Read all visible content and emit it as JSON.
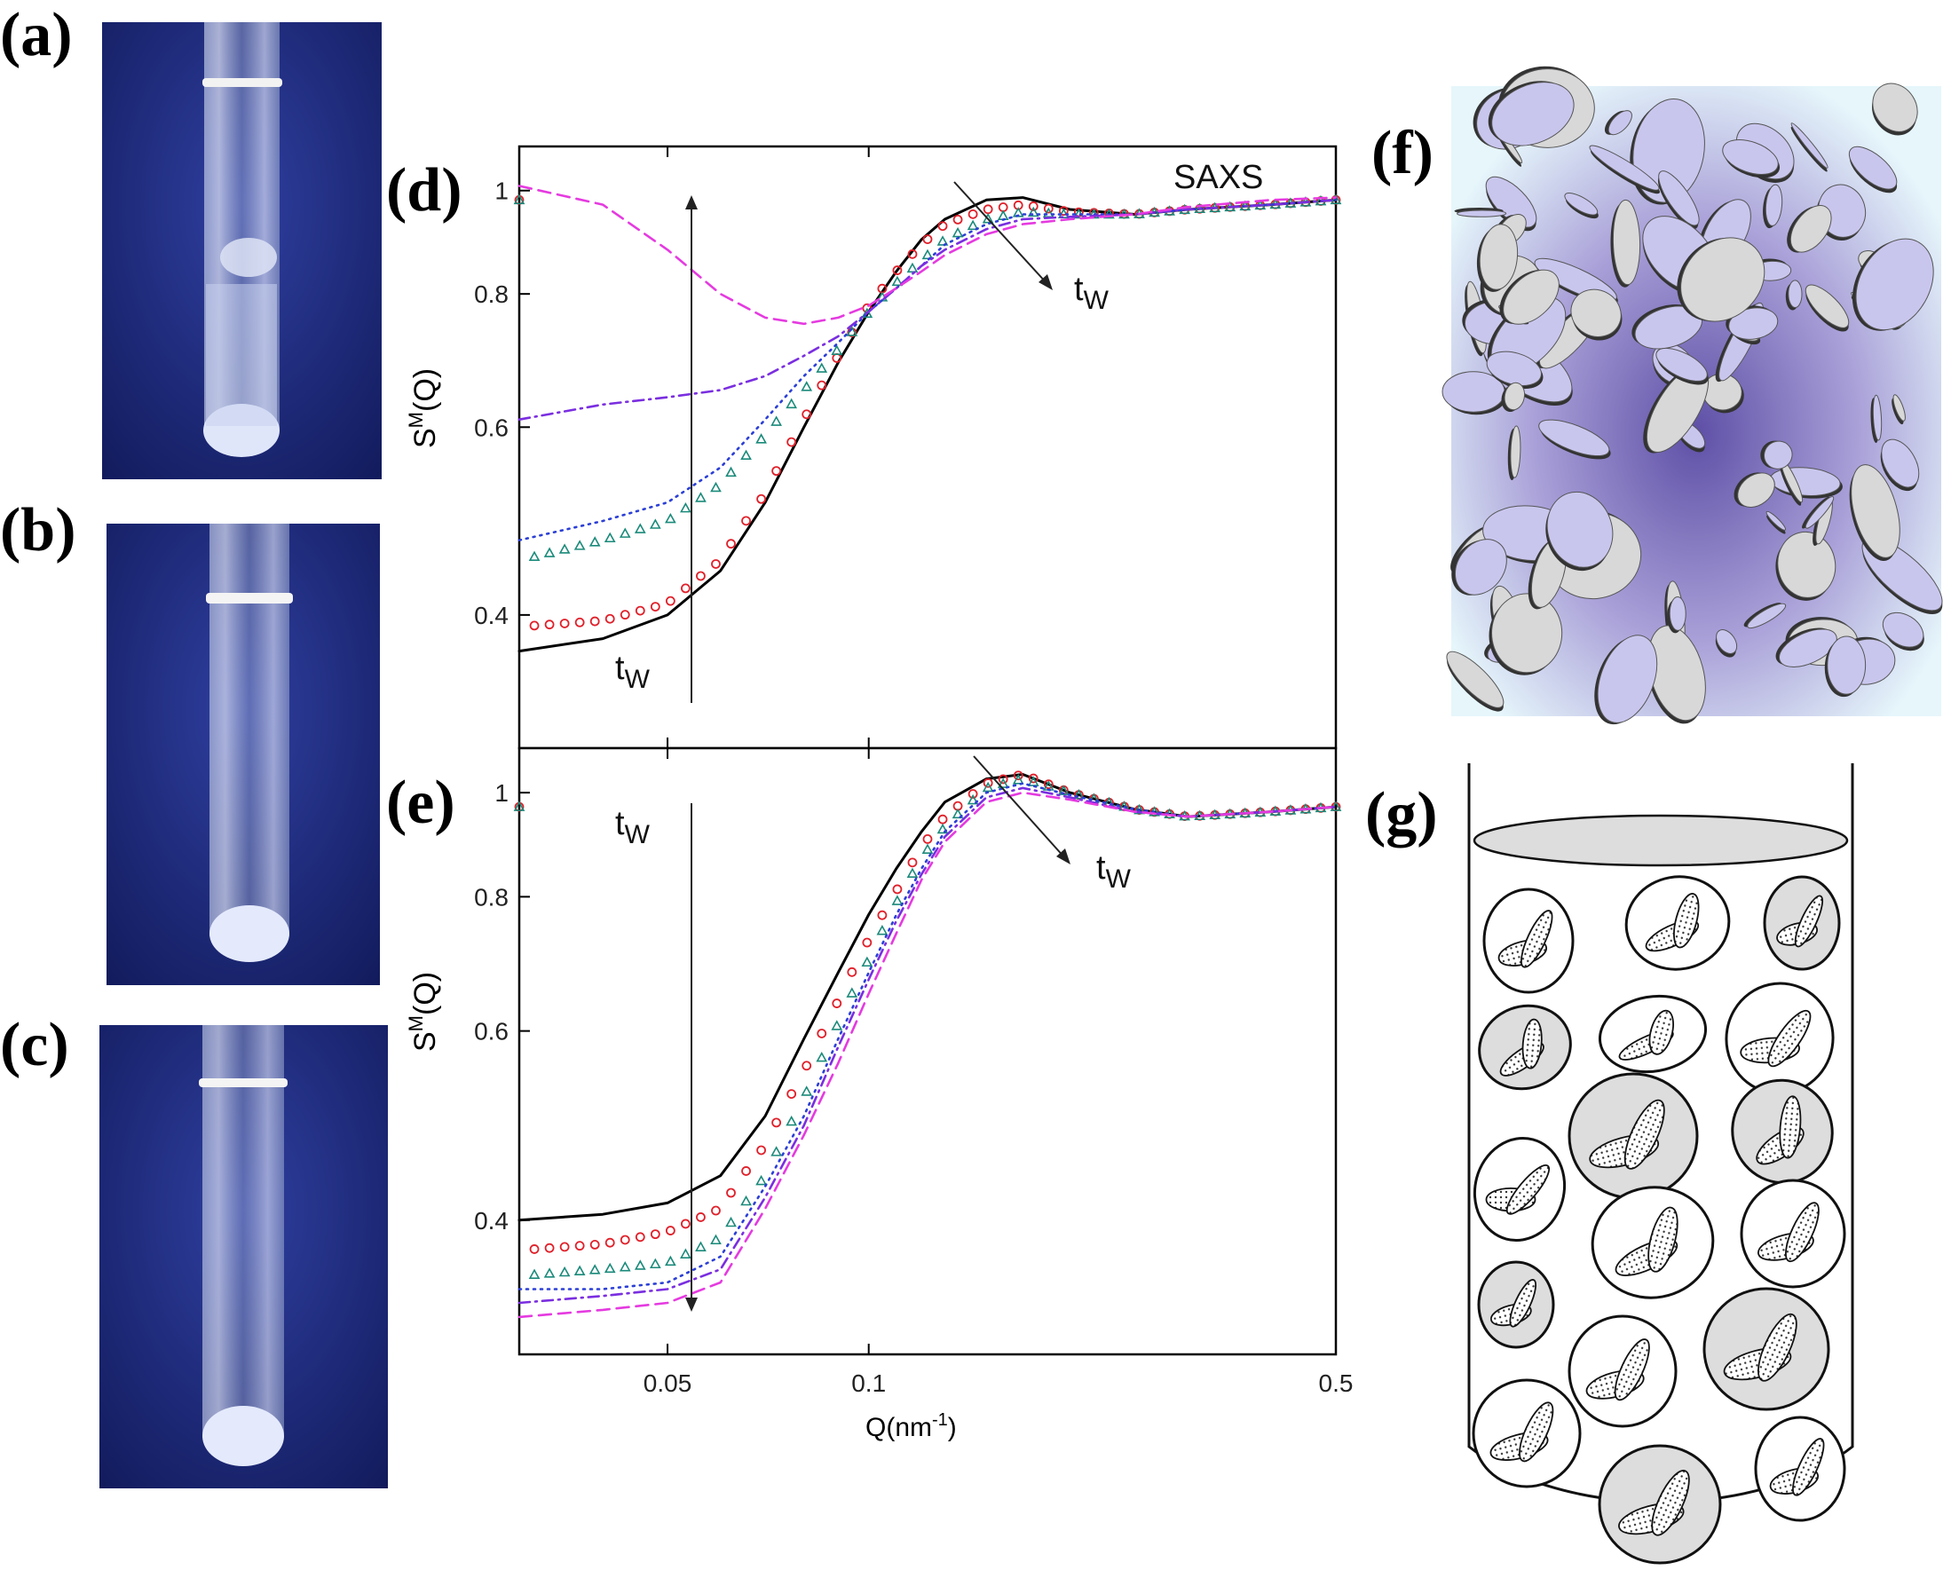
{
  "panels": {
    "a": "(a)",
    "b": "(b)",
    "c": "(c)",
    "d": "(d)",
    "e": "(e)",
    "f": "(f)",
    "g": "(g)"
  },
  "chart_data": [
    {
      "type": "line",
      "panel": "d",
      "annotation": "SAXS",
      "ylabel": "S^M(Q)",
      "xlabel": "",
      "xscale": "log",
      "yscale": "log",
      "xlim": [
        0.03,
        0.5
      ],
      "ylim": [
        0.3,
        1.1
      ],
      "x_ticks": [
        0.05,
        0.1,
        0.5
      ],
      "y_ticks": [
        0.4,
        0.6,
        0.8,
        1
      ],
      "arrow_label": "tW",
      "colors": [
        "#000000",
        "#e0202a",
        "#1a8a7a",
        "#2b3fd6",
        "#7a2ee0",
        "#e53ae0"
      ],
      "series": [
        {
          "style": "solid",
          "points": [
            [
              0.03,
              0.37
            ],
            [
              0.04,
              0.38
            ],
            [
              0.05,
              0.4
            ],
            [
              0.06,
              0.44
            ],
            [
              0.07,
              0.51
            ],
            [
              0.08,
              0.6
            ],
            [
              0.09,
              0.69
            ],
            [
              0.1,
              0.77
            ],
            [
              0.11,
              0.84
            ],
            [
              0.12,
              0.9
            ],
            [
              0.13,
              0.94
            ],
            [
              0.15,
              0.98
            ],
            [
              0.17,
              0.985
            ],
            [
              0.2,
              0.96
            ],
            [
              0.25,
              0.95
            ],
            [
              0.3,
              0.96
            ],
            [
              0.4,
              0.97
            ],
            [
              0.5,
              0.98
            ]
          ]
        },
        {
          "style": "circles",
          "points": [
            [
              0.03,
              0.39
            ],
            [
              0.04,
              0.395
            ],
            [
              0.05,
              0.41
            ],
            [
              0.06,
              0.45
            ],
            [
              0.07,
              0.52
            ],
            [
              0.08,
              0.61
            ],
            [
              0.09,
              0.7
            ],
            [
              0.1,
              0.78
            ],
            [
              0.11,
              0.84
            ],
            [
              0.12,
              0.89
            ],
            [
              0.13,
              0.93
            ],
            [
              0.15,
              0.96
            ],
            [
              0.17,
              0.97
            ],
            [
              0.2,
              0.955
            ],
            [
              0.25,
              0.95
            ],
            [
              0.3,
              0.96
            ],
            [
              0.4,
              0.97
            ],
            [
              0.5,
              0.98
            ]
          ]
        },
        {
          "style": "triangles",
          "points": [
            [
              0.03,
              0.45
            ],
            [
              0.04,
              0.47
            ],
            [
              0.05,
              0.49
            ],
            [
              0.06,
              0.53
            ],
            [
              0.07,
              0.59
            ],
            [
              0.08,
              0.65
            ],
            [
              0.09,
              0.71
            ],
            [
              0.1,
              0.77
            ],
            [
              0.11,
              0.82
            ],
            [
              0.12,
              0.86
            ],
            [
              0.13,
              0.9
            ],
            [
              0.15,
              0.94
            ],
            [
              0.17,
              0.955
            ],
            [
              0.2,
              0.95
            ],
            [
              0.25,
              0.95
            ],
            [
              0.3,
              0.96
            ],
            [
              0.4,
              0.97
            ],
            [
              0.5,
              0.98
            ]
          ]
        },
        {
          "style": "dotted",
          "points": [
            [
              0.03,
              0.47
            ],
            [
              0.04,
              0.49
            ],
            [
              0.05,
              0.51
            ],
            [
              0.06,
              0.55
            ],
            [
              0.07,
              0.61
            ],
            [
              0.08,
              0.67
            ],
            [
              0.09,
              0.72
            ],
            [
              0.1,
              0.77
            ],
            [
              0.11,
              0.81
            ],
            [
              0.12,
              0.85
            ],
            [
              0.13,
              0.89
            ],
            [
              0.15,
              0.93
            ],
            [
              0.17,
              0.95
            ],
            [
              0.2,
              0.95
            ],
            [
              0.25,
              0.95
            ],
            [
              0.3,
              0.96
            ],
            [
              0.4,
              0.97
            ],
            [
              0.5,
              0.98
            ]
          ]
        },
        {
          "style": "dashdot",
          "points": [
            [
              0.03,
              0.61
            ],
            [
              0.04,
              0.63
            ],
            [
              0.05,
              0.64
            ],
            [
              0.06,
              0.65
            ],
            [
              0.07,
              0.67
            ],
            [
              0.08,
              0.7
            ],
            [
              0.09,
              0.73
            ],
            [
              0.1,
              0.77
            ],
            [
              0.11,
              0.81
            ],
            [
              0.12,
              0.85
            ],
            [
              0.13,
              0.88
            ],
            [
              0.15,
              0.92
            ],
            [
              0.17,
              0.94
            ],
            [
              0.2,
              0.945
            ],
            [
              0.25,
              0.95
            ],
            [
              0.3,
              0.96
            ],
            [
              0.4,
              0.97
            ],
            [
              0.5,
              0.98
            ]
          ]
        },
        {
          "style": "dashed",
          "points": [
            [
              0.03,
              1.01
            ],
            [
              0.04,
              0.97
            ],
            [
              0.05,
              0.88
            ],
            [
              0.06,
              0.8
            ],
            [
              0.07,
              0.76
            ],
            [
              0.08,
              0.75
            ],
            [
              0.09,
              0.76
            ],
            [
              0.1,
              0.78
            ],
            [
              0.11,
              0.81
            ],
            [
              0.12,
              0.84
            ],
            [
              0.13,
              0.87
            ],
            [
              0.15,
              0.91
            ],
            [
              0.17,
              0.93
            ],
            [
              0.2,
              0.94
            ],
            [
              0.25,
              0.95
            ],
            [
              0.3,
              0.965
            ],
            [
              0.4,
              0.98
            ],
            [
              0.5,
              0.985
            ]
          ]
        }
      ]
    },
    {
      "type": "line",
      "panel": "e",
      "ylabel": "S^M(Q)",
      "xlabel": "Q(nm^-1)",
      "xscale": "log",
      "yscale": "log",
      "xlim": [
        0.03,
        0.5
      ],
      "ylim": [
        0.3,
        1.1
      ],
      "x_ticks": [
        0.05,
        0.1,
        0.5
      ],
      "y_ticks": [
        0.4,
        0.6,
        0.8,
        1
      ],
      "arrow_label": "tW",
      "colors": [
        "#000000",
        "#e0202a",
        "#1a8a7a",
        "#2b3fd6",
        "#7a2ee0",
        "#e53ae0"
      ],
      "series": [
        {
          "style": "solid",
          "points": [
            [
              0.03,
              0.4
            ],
            [
              0.04,
              0.405
            ],
            [
              0.05,
              0.415
            ],
            [
              0.06,
              0.44
            ],
            [
              0.07,
              0.5
            ],
            [
              0.08,
              0.59
            ],
            [
              0.09,
              0.68
            ],
            [
              0.1,
              0.77
            ],
            [
              0.11,
              0.85
            ],
            [
              0.12,
              0.92
            ],
            [
              0.13,
              0.98
            ],
            [
              0.15,
              1.03
            ],
            [
              0.17,
              1.04
            ],
            [
              0.2,
              1.0
            ],
            [
              0.25,
              0.965
            ],
            [
              0.3,
              0.95
            ],
            [
              0.4,
              0.96
            ],
            [
              0.5,
              0.97
            ]
          ]
        },
        {
          "style": "circles",
          "points": [
            [
              0.03,
              0.375
            ],
            [
              0.04,
              0.38
            ],
            [
              0.05,
              0.39
            ],
            [
              0.06,
              0.41
            ],
            [
              0.07,
              0.47
            ],
            [
              0.08,
              0.55
            ],
            [
              0.09,
              0.64
            ],
            [
              0.1,
              0.73
            ],
            [
              0.11,
              0.81
            ],
            [
              0.12,
              0.89
            ],
            [
              0.13,
              0.95
            ],
            [
              0.15,
              1.02
            ],
            [
              0.17,
              1.04
            ],
            [
              0.2,
              1.0
            ],
            [
              0.25,
              0.965
            ],
            [
              0.3,
              0.95
            ],
            [
              0.4,
              0.96
            ],
            [
              0.5,
              0.97
            ]
          ]
        },
        {
          "style": "triangles",
          "points": [
            [
              0.03,
              0.355
            ],
            [
              0.04,
              0.36
            ],
            [
              0.05,
              0.365
            ],
            [
              0.06,
              0.385
            ],
            [
              0.07,
              0.44
            ],
            [
              0.08,
              0.52
            ],
            [
              0.09,
              0.61
            ],
            [
              0.1,
              0.7
            ],
            [
              0.11,
              0.79
            ],
            [
              0.12,
              0.87
            ],
            [
              0.13,
              0.93
            ],
            [
              0.15,
              1.01
            ],
            [
              0.17,
              1.03
            ],
            [
              0.2,
              1.0
            ],
            [
              0.25,
              0.965
            ],
            [
              0.3,
              0.95
            ],
            [
              0.4,
              0.96
            ],
            [
              0.5,
              0.97
            ]
          ]
        },
        {
          "style": "dotted",
          "points": [
            [
              0.03,
              0.345
            ],
            [
              0.04,
              0.345
            ],
            [
              0.05,
              0.35
            ],
            [
              0.06,
              0.37
            ],
            [
              0.07,
              0.43
            ],
            [
              0.08,
              0.5
            ],
            [
              0.09,
              0.59
            ],
            [
              0.1,
              0.68
            ],
            [
              0.11,
              0.77
            ],
            [
              0.12,
              0.85
            ],
            [
              0.13,
              0.92
            ],
            [
              0.15,
              1.0
            ],
            [
              0.17,
              1.02
            ],
            [
              0.2,
              0.995
            ],
            [
              0.25,
              0.965
            ],
            [
              0.3,
              0.95
            ],
            [
              0.4,
              0.96
            ],
            [
              0.5,
              0.97
            ]
          ]
        },
        {
          "style": "dashdot",
          "points": [
            [
              0.03,
              0.335
            ],
            [
              0.04,
              0.34
            ],
            [
              0.05,
              0.345
            ],
            [
              0.06,
              0.36
            ],
            [
              0.07,
              0.42
            ],
            [
              0.08,
              0.49
            ],
            [
              0.09,
              0.58
            ],
            [
              0.1,
              0.67
            ],
            [
              0.11,
              0.76
            ],
            [
              0.12,
              0.84
            ],
            [
              0.13,
              0.91
            ],
            [
              0.15,
              0.99
            ],
            [
              0.17,
              1.01
            ],
            [
              0.2,
              0.99
            ],
            [
              0.25,
              0.96
            ],
            [
              0.3,
              0.95
            ],
            [
              0.4,
              0.96
            ],
            [
              0.5,
              0.97
            ]
          ]
        },
        {
          "style": "dashed",
          "points": [
            [
              0.03,
              0.325
            ],
            [
              0.04,
              0.33
            ],
            [
              0.05,
              0.335
            ],
            [
              0.06,
              0.35
            ],
            [
              0.07,
              0.41
            ],
            [
              0.08,
              0.48
            ],
            [
              0.09,
              0.56
            ],
            [
              0.1,
              0.65
            ],
            [
              0.11,
              0.74
            ],
            [
              0.12,
              0.83
            ],
            [
              0.13,
              0.9
            ],
            [
              0.15,
              0.98
            ],
            [
              0.17,
              1.0
            ],
            [
              0.2,
              0.985
            ],
            [
              0.25,
              0.96
            ],
            [
              0.3,
              0.95
            ],
            [
              0.4,
              0.96
            ],
            [
              0.5,
              0.97
            ]
          ]
        }
      ]
    }
  ]
}
